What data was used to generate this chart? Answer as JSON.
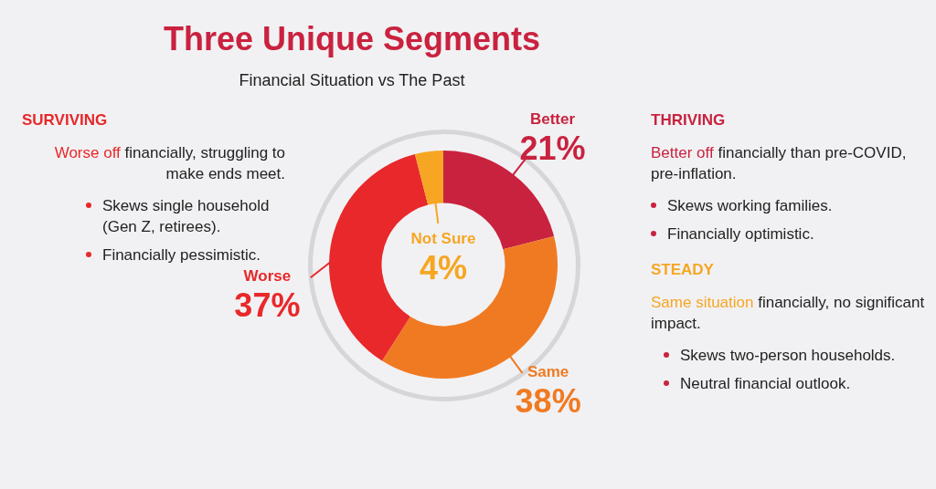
{
  "chart_data": {
    "type": "donut",
    "title": "Three Unique Segments",
    "subtitle": "Financial Situation vs The Past",
    "categories": [
      "Better",
      "Same",
      "Worse",
      "Not Sure"
    ],
    "values": [
      21,
      38,
      37,
      4
    ],
    "value_labels": [
      "21%",
      "38%",
      "37%",
      "4%"
    ],
    "colors": [
      "#c9223f",
      "#f07a22",
      "#e8282a",
      "#f6a623"
    ],
    "annotations": [
      "SURVIVING",
      "Worse off",
      "financially, struggling to make ends meet.",
      "Skews single household (Gen Z, retirees).",
      "Financially pessimistic.",
      "THRIVING",
      "Better off",
      "financially than pre-COVID, pre-inflation.",
      "Skews working families.",
      "Financially optimistic.",
      "STEADY",
      "Same situation",
      "financially, no significant impact.",
      "Skews two-person households.",
      "Neutral financial outlook."
    ]
  }
}
